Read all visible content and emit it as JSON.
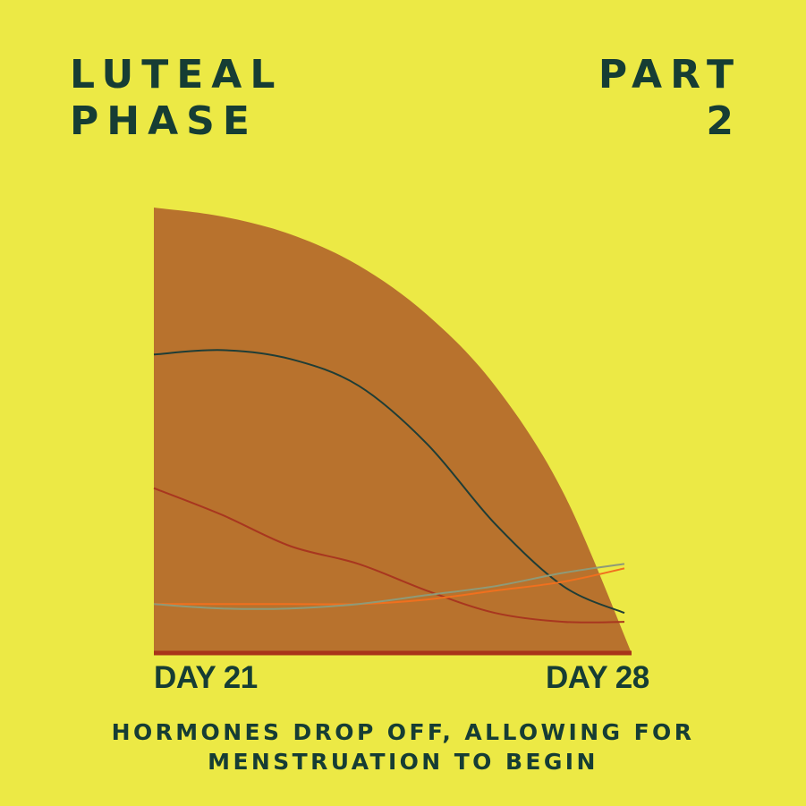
{
  "heading": {
    "title_line1": "LUTEAL",
    "title_line2": "PHASE",
    "part_line1": "PART",
    "part_line2": "2"
  },
  "caption": {
    "line1": "HORMONES DROP OFF, ALLOWING FOR",
    "line2": "MENSTRUATION TO BEGIN"
  },
  "colors": {
    "background": "#ECE945",
    "text": "#163D34",
    "area": "#B8722D",
    "baseline": "#A8341A"
  },
  "chart_data": {
    "type": "line",
    "x_tick_labels": [
      "DAY 21",
      "DAY 28"
    ],
    "xlim": [
      21,
      28
    ],
    "ylim": [
      0,
      100
    ],
    "grid": false,
    "x": [
      21,
      22,
      23,
      24,
      25,
      26,
      27,
      28
    ],
    "envelope": {
      "color": "#B8722D",
      "values": [
        100,
        98,
        94,
        87,
        76,
        60,
        36,
        0
      ]
    },
    "series": [
      {
        "color": "#1F3D36",
        "values": [
          67,
          68,
          66,
          60,
          47,
          29,
          15,
          9
        ]
      },
      {
        "color": "#A8361F",
        "values": [
          37,
          31,
          24,
          20,
          14,
          9,
          7,
          7
        ]
      },
      {
        "color": "#F0701E",
        "values": [
          11,
          11,
          11,
          11,
          12,
          14,
          16,
          19
        ]
      },
      {
        "color": "#8E9A78",
        "values": [
          11,
          10,
          10,
          11,
          13,
          15,
          18,
          20
        ]
      }
    ]
  }
}
